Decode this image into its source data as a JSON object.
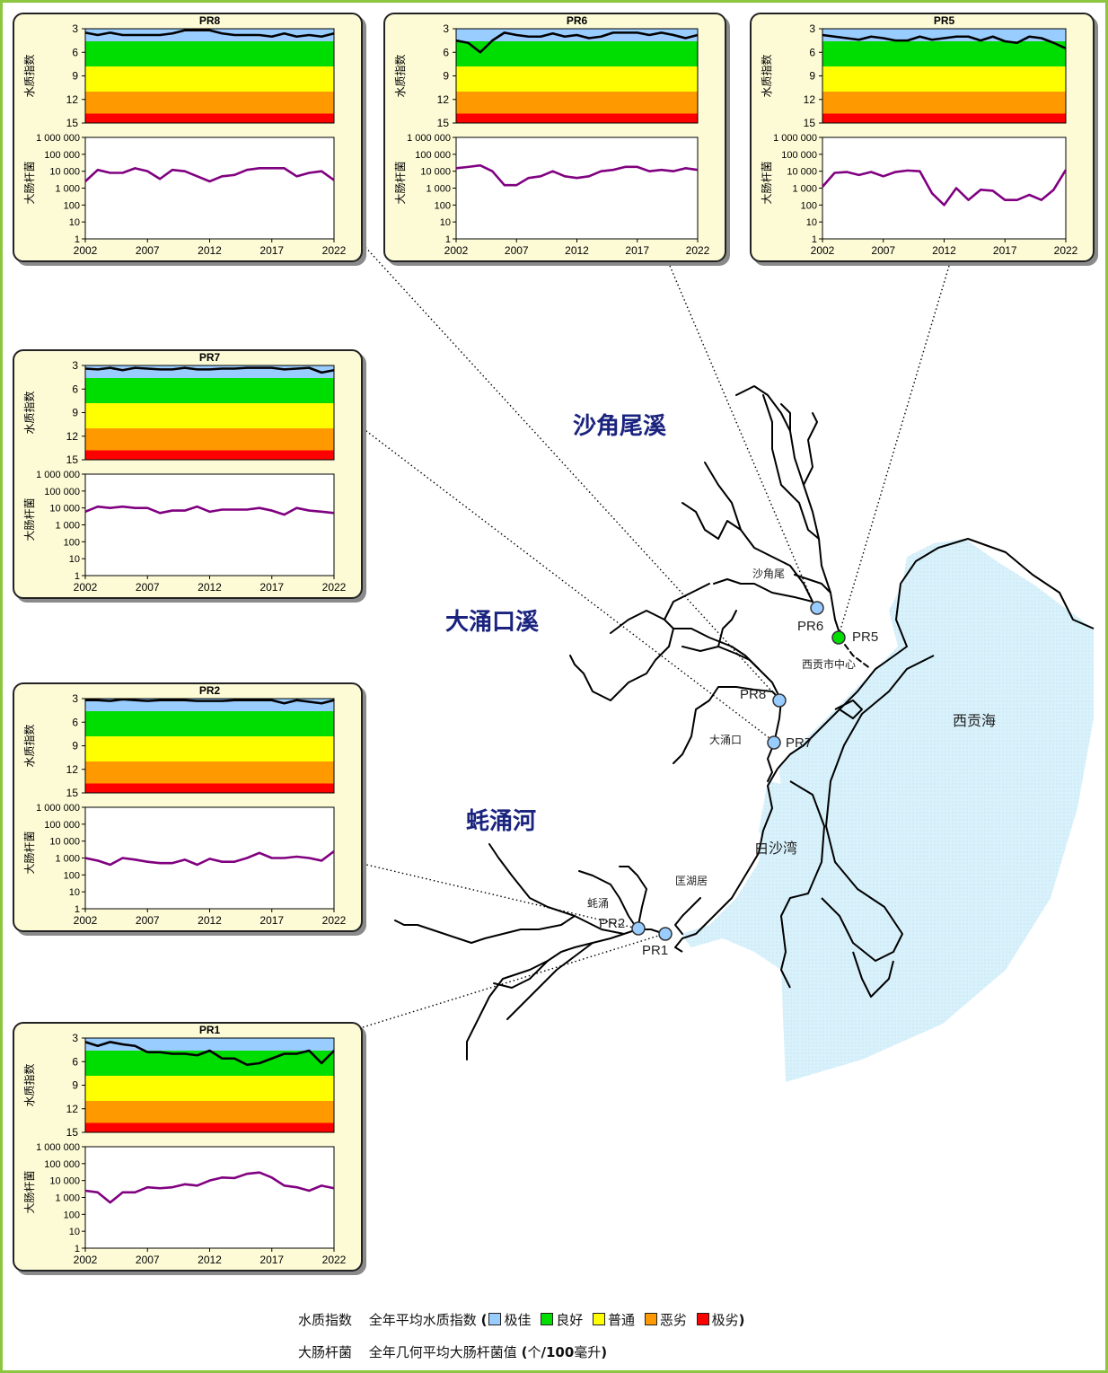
{
  "colors": {
    "excellent": "#99ccff",
    "good": "#00dd00",
    "fair": "#ffff00",
    "bad": "#ff9900",
    "very_bad": "#ff0000",
    "wqi_line": "#000000",
    "ecoli_line": "#800080",
    "sea": "#d9f1fa",
    "river": "#000000",
    "frame": "#8cc63f",
    "panel_bg": "#fdfbd6",
    "label_blue": "#1a237e"
  },
  "map": {
    "stream_labels": [
      "沙角尾溪",
      "大涌口溪",
      "蚝涌河"
    ],
    "place_labels": [
      "沙角尾",
      "西贡市中心",
      "大涌口",
      "匡湖居",
      "白沙湾",
      "西贡海",
      "蚝涌"
    ],
    "stations": [
      {
        "id": "PR6",
        "color": "#99ccff"
      },
      {
        "id": "PR5",
        "color": "#00dd00"
      },
      {
        "id": "PR8",
        "color": "#99ccff"
      },
      {
        "id": "PR7",
        "color": "#99ccff"
      },
      {
        "id": "PR2",
        "color": "#99ccff"
      },
      {
        "id": "PR1",
        "color": "#99ccff"
      }
    ]
  },
  "chart_common": {
    "wqi_axis_label": "水质指数",
    "wqi_ticks": [
      "3",
      "6",
      "9",
      "12",
      "15"
    ],
    "ecoli_axis_label": "大肠杆菌",
    "ecoli_ticks": [
      "1 000 000",
      "100 000",
      "10 000",
      "1 000",
      "100",
      "10",
      "1"
    ],
    "x_ticks": [
      "2002",
      "2007",
      "2012",
      "2017",
      "2022"
    ]
  },
  "chart_data": [
    {
      "type": "line",
      "title": "PR8",
      "x": [
        2002,
        2003,
        2004,
        2005,
        2006,
        2007,
        2008,
        2009,
        2010,
        2011,
        2012,
        2013,
        2014,
        2015,
        2016,
        2017,
        2018,
        2019,
        2020,
        2021,
        2022
      ],
      "series": [
        {
          "name": "水质指数",
          "values": [
            3.5,
            3.8,
            3.5,
            3.8,
            3.8,
            3.8,
            3.8,
            3.6,
            3.2,
            3.2,
            3.2,
            3.6,
            3.8,
            3.8,
            3.8,
            4,
            3.6,
            4,
            3.8,
            4,
            3.6
          ],
          "ylim": [
            15,
            3
          ]
        },
        {
          "name": "大肠杆菌",
          "values": [
            2500,
            12000,
            8000,
            8000,
            15000,
            10000,
            3500,
            12000,
            10000,
            5000,
            2500,
            5000,
            6000,
            12000,
            15000,
            15000,
            15000,
            5000,
            8000,
            10000,
            3000
          ],
          "scale": "log",
          "ylim": [
            1,
            1000000
          ]
        }
      ],
      "ylim_wqi": [
        15,
        3
      ]
    },
    {
      "type": "line",
      "title": "PR6",
      "x": [
        2002,
        2003,
        2004,
        2005,
        2006,
        2007,
        2008,
        2009,
        2010,
        2011,
        2012,
        2013,
        2014,
        2015,
        2016,
        2017,
        2018,
        2019,
        2020,
        2021,
        2022
      ],
      "series": [
        {
          "name": "水质指数",
          "values": [
            4.5,
            4.8,
            6,
            4.5,
            3.5,
            3.8,
            4,
            4,
            3.6,
            4,
            3.8,
            4.2,
            4,
            3.5,
            3.5,
            3.5,
            3.8,
            3.5,
            3.8,
            4.2,
            3.8
          ]
        },
        {
          "name": "大肠杆菌",
          "values": [
            15000,
            18000,
            22000,
            10000,
            1500,
            1500,
            4000,
            5000,
            10000,
            5000,
            4000,
            5000,
            10000,
            12000,
            18000,
            18000,
            10000,
            12000,
            10000,
            15000,
            12000
          ],
          "scale": "log"
        }
      ]
    },
    {
      "type": "line",
      "title": "PR5",
      "x": [
        2002,
        2003,
        2004,
        2005,
        2006,
        2007,
        2008,
        2009,
        2010,
        2011,
        2012,
        2013,
        2014,
        2015,
        2016,
        2017,
        2018,
        2019,
        2020,
        2021,
        2022
      ],
      "series": [
        {
          "name": "水质指数",
          "values": [
            3.8,
            4,
            4.2,
            4.4,
            4,
            4.2,
            4.5,
            4.5,
            4,
            4.4,
            4.2,
            4,
            4,
            4.5,
            4,
            4.6,
            4.8,
            4,
            4.2,
            4.8,
            5.5
          ]
        },
        {
          "name": "大肠杆菌",
          "values": [
            1200,
            8000,
            9000,
            6000,
            9000,
            5000,
            9000,
            11000,
            10000,
            500,
            100,
            1000,
            200,
            800,
            700,
            200,
            200,
            400,
            200,
            800,
            12000
          ],
          "scale": "log"
        }
      ]
    },
    {
      "type": "line",
      "title": "PR7",
      "x": [
        2002,
        2003,
        2004,
        2005,
        2006,
        2007,
        2008,
        2009,
        2010,
        2011,
        2012,
        2013,
        2014,
        2015,
        2016,
        2017,
        2018,
        2019,
        2020,
        2021,
        2022
      ],
      "series": [
        {
          "name": "水质指数",
          "values": [
            3.4,
            3.5,
            3.3,
            3.6,
            3.3,
            3.4,
            3.5,
            3.5,
            3.3,
            3.5,
            3.5,
            3.4,
            3.4,
            3.3,
            3.3,
            3.3,
            3.5,
            3.4,
            3.3,
            3.9,
            3.6
          ]
        },
        {
          "name": "大肠杆菌",
          "values": [
            6000,
            12000,
            10000,
            12000,
            10000,
            10000,
            5000,
            7000,
            7000,
            12000,
            6000,
            8000,
            8000,
            8000,
            10000,
            7000,
            4000,
            10000,
            7000,
            6000,
            5000
          ],
          "scale": "log"
        }
      ]
    },
    {
      "type": "line",
      "title": "PR2",
      "x": [
        2002,
        2003,
        2004,
        2005,
        2006,
        2007,
        2008,
        2009,
        2010,
        2011,
        2012,
        2013,
        2014,
        2015,
        2016,
        2017,
        2018,
        2019,
        2020,
        2021,
        2022
      ],
      "series": [
        {
          "name": "水质指数",
          "values": [
            3.2,
            3.2,
            3.3,
            3.1,
            3.2,
            3.3,
            3.2,
            3.2,
            3.2,
            3.3,
            3.3,
            3.3,
            3.2,
            3.2,
            3.2,
            3.2,
            3.6,
            3.2,
            3.4,
            3.6,
            3.2
          ]
        },
        {
          "name": "大肠杆菌",
          "values": [
            1000,
            700,
            400,
            1000,
            800,
            600,
            500,
            500,
            800,
            400,
            900,
            600,
            600,
            1000,
            2000,
            1000,
            1000,
            1200,
            1000,
            700,
            2500
          ],
          "scale": "log"
        }
      ]
    },
    {
      "type": "line",
      "title": "PR1",
      "x": [
        2002,
        2003,
        2004,
        2005,
        2006,
        2007,
        2008,
        2009,
        2010,
        2011,
        2012,
        2013,
        2014,
        2015,
        2016,
        2017,
        2018,
        2019,
        2020,
        2021,
        2022
      ],
      "series": [
        {
          "name": "水质指数",
          "values": [
            3.5,
            4,
            3.5,
            3.8,
            4,
            4.8,
            4.8,
            5,
            5,
            5.2,
            4.6,
            5.6,
            5.6,
            6.4,
            6.2,
            5.6,
            5,
            5,
            4.6,
            6.2,
            4.6
          ]
        },
        {
          "name": "大肠杆菌",
          "values": [
            2500,
            2000,
            500,
            2000,
            2000,
            4000,
            3500,
            4000,
            6000,
            5000,
            10000,
            15000,
            14000,
            25000,
            30000,
            15000,
            5000,
            4000,
            2500,
            5000,
            3500
          ],
          "scale": "log"
        }
      ]
    }
  ],
  "legend": {
    "wqi_name": "水质指数",
    "wqi_desc": "全年平均水质指数",
    "cat_excellent": "极佳",
    "cat_good": "良好",
    "cat_fair": "普通",
    "cat_bad": "恶劣",
    "cat_very_bad": "极劣",
    "ecoli_name": "大肠杆菌",
    "ecoli_desc": "全年几何平均大肠杆菌值",
    "ecoli_unit_a": "个",
    "ecoli_unit_b": "/100",
    "ecoli_unit_c": "毫升"
  }
}
